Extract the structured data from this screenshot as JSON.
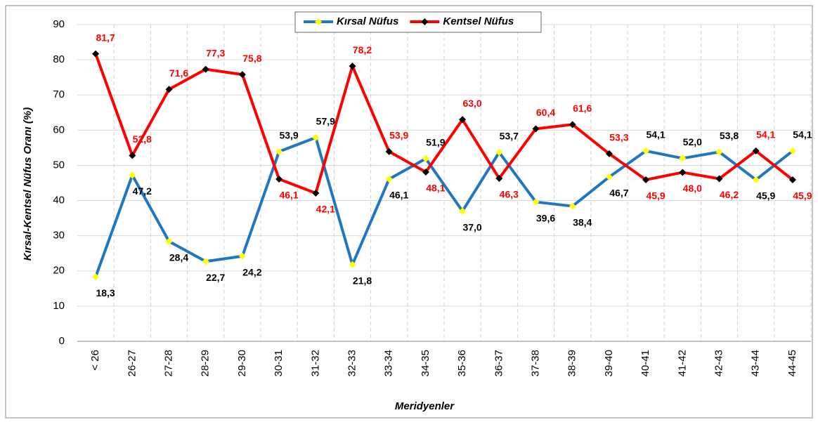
{
  "chart_data": {
    "type": "line",
    "y_axis_label": "Kırsal-Kentsel Nüfus Oranı (%)",
    "x_axis_label": "Meridyenler",
    "categories": [
      "< 26",
      "26-27",
      "27-28",
      "28-29",
      "29-30",
      "30-31",
      "31-32",
      "32-33",
      "33-34",
      "34-35",
      "35-36",
      "36-37",
      "37-38",
      "38-39",
      "39-40",
      "40-41",
      "41-42",
      "42-43",
      "43-44",
      "44-45"
    ],
    "series": [
      {
        "name": "Kırsal Nüfus",
        "color": "#1f77c4",
        "marker_color": "#ffff00",
        "label_color": "#000000",
        "values": [
          18.3,
          47.2,
          28.4,
          22.7,
          24.2,
          53.9,
          57.9,
          21.8,
          46.1,
          51.9,
          37.0,
          53.7,
          39.6,
          38.4,
          46.7,
          54.1,
          52.0,
          53.8,
          45.9,
          54.1
        ],
        "value_labels": [
          "18,3",
          "47,2",
          "28,4",
          "22,7",
          "24,2",
          "53,9",
          "57,9",
          "21,8",
          "46,1",
          "51,9",
          "37,0",
          "53,7",
          "39,6",
          "38,4",
          "46,7",
          "54,1",
          "52,0",
          "53,8",
          "45,9",
          "54,1"
        ]
      },
      {
        "name": "Kentsel Nüfus",
        "color": "#ff0000",
        "marker_color": "#000000",
        "label_color": "#ff0000",
        "values": [
          81.7,
          52.8,
          71.6,
          77.3,
          75.8,
          46.1,
          42.1,
          78.2,
          53.9,
          48.1,
          63.0,
          46.3,
          60.4,
          61.6,
          53.3,
          45.9,
          48.0,
          46.2,
          54.1,
          45.9
        ],
        "value_labels": [
          "81,7",
          "52,8",
          "71,6",
          "77,3",
          "75,8",
          "46,1",
          "42,1",
          "78,2",
          "53,9",
          "48,1",
          "63,0",
          "46,3",
          "60,4",
          "61,6",
          "53,3",
          "45,9",
          "48,0",
          "46,2",
          "54,1",
          "45,9"
        ]
      }
    ],
    "ylim": [
      0,
      90
    ],
    "yticks": [
      0,
      10,
      20,
      30,
      40,
      50,
      60,
      70,
      80,
      90
    ],
    "grid": true,
    "legend": "top"
  }
}
